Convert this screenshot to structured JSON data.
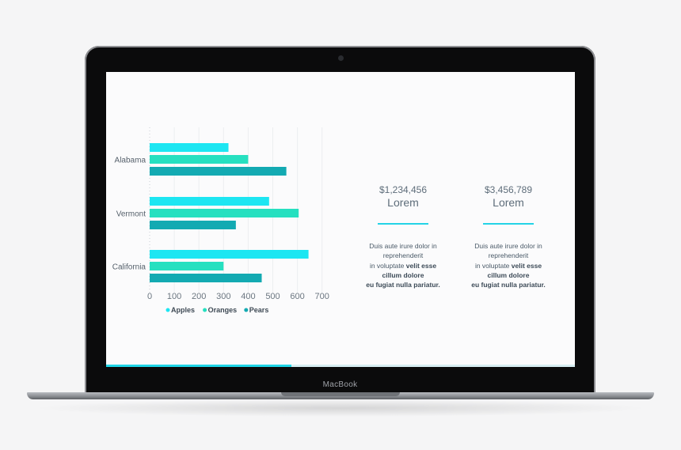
{
  "device": {
    "label": "MacBook"
  },
  "chart_data": {
    "type": "bar",
    "orientation": "horizontal",
    "categories": [
      "Alabama",
      "Vermont",
      "California"
    ],
    "series": [
      {
        "name": "Apples",
        "values": [
          320,
          485,
          645
        ],
        "color": "#1de6f2"
      },
      {
        "name": "Oranges",
        "values": [
          400,
          605,
          300
        ],
        "color": "#26e0c0"
      },
      {
        "name": "Pears",
        "values": [
          555,
          350,
          455
        ],
        "color": "#13aab2"
      }
    ],
    "xticks": [
      0,
      100,
      200,
      300,
      400,
      500,
      600,
      700
    ],
    "xlim": [
      0,
      700
    ],
    "grid": true,
    "legend": "bottom",
    "title": "",
    "xlabel": "",
    "ylabel": ""
  },
  "stats": [
    {
      "amount": "$1,234,456",
      "label": "Lorem",
      "desc_lines": [
        "Duis aute irure dolor in",
        "reprehenderit",
        "in voluptate "
      ],
      "desc_bold": [
        "velit esse",
        "cillum dolore",
        "eu fugiat nulla pariatur."
      ]
    },
    {
      "amount": "$3,456,789",
      "label": "Lorem",
      "desc_lines": [
        "Duis aute irure dolor in",
        "reprehenderit",
        "in voluptate "
      ],
      "desc_bold": [
        "velit esse",
        "cillum dolore",
        "eu fugiat nulla pariatur."
      ]
    }
  ],
  "slide_progress": 0.395,
  "colors": {
    "accent": "#1fd6e8",
    "text": "#5e6d7a"
  }
}
